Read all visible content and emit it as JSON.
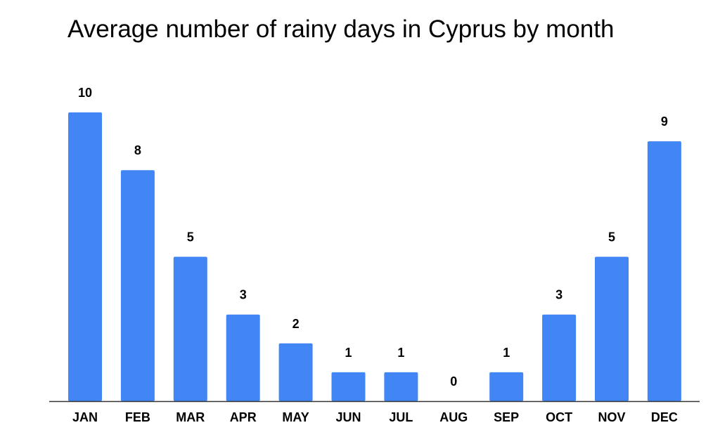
{
  "chart_data": {
    "type": "bar",
    "title": "Average number of rainy days in Cyprus by month",
    "xlabel": "",
    "ylabel": "",
    "categories": [
      "JAN",
      "FEB",
      "MAR",
      "APR",
      "MAY",
      "JUN",
      "JUL",
      "AUG",
      "SEP",
      "OCT",
      "NOV",
      "DEC"
    ],
    "values": [
      10,
      8,
      5,
      3,
      2,
      1,
      1,
      0,
      1,
      3,
      5,
      9
    ],
    "ylim": [
      0,
      10
    ],
    "grid": false,
    "legend": "none",
    "bar_color": "#4285f4",
    "axis_color": "#333333"
  }
}
